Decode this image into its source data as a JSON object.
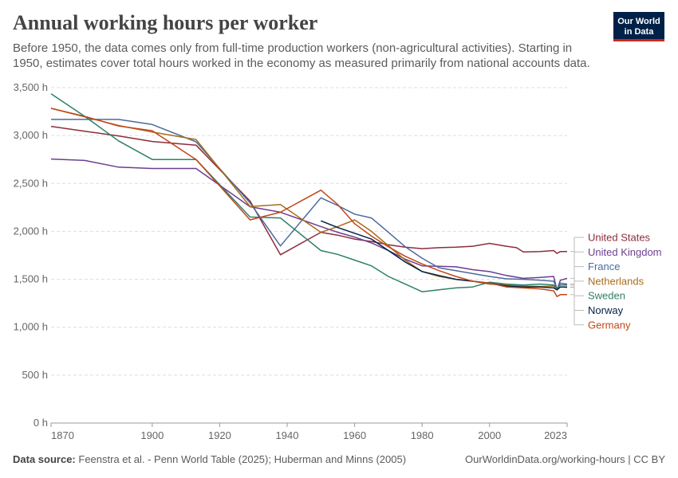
{
  "header": {
    "title": "Annual working hours per worker",
    "subtitle": "Before 1950, the data comes only from full-time production workers (non-agricultural activities). Starting in 1950, estimates cover total hours worked in the economy as measured primarily from national accounts data.",
    "logo_line1": "Our World",
    "logo_line2": "in Data"
  },
  "footer": {
    "source_label": "Data source:",
    "source_text": "Feenstra et al. - Penn World Table (2025); Huberman and Minns (2005)",
    "url_text": "OurWorldinData.org/working-hours | CC BY"
  },
  "chart_data": {
    "type": "line",
    "xlim": [
      1870,
      2023
    ],
    "ylim": [
      0,
      3500
    ],
    "x_ticks": [
      1870,
      1900,
      1920,
      1940,
      1960,
      1980,
      2000,
      2023
    ],
    "y_ticks": [
      0,
      500,
      1000,
      1500,
      2000,
      2500,
      3000,
      3500
    ],
    "y_tick_labels": [
      "0 h",
      "500 h",
      "1,000 h",
      "1,500 h",
      "2,000 h",
      "2,500 h",
      "3,000 h",
      "3,500 h"
    ],
    "grid": true,
    "legend_placement": "right",
    "series": [
      {
        "name": "United States",
        "color": "#8c2d3c",
        "x": [
          1870,
          1880,
          1890,
          1900,
          1913,
          1929,
          1938,
          1950,
          1955,
          1960,
          1965,
          1970,
          1975,
          1980,
          1985,
          1990,
          1995,
          2000,
          2005,
          2008,
          2010,
          2015,
          2019,
          2020,
          2021,
          2023
        ],
        "y": [
          3096,
          3045,
          2996,
          2938,
          2900,
          2316,
          1756,
          1990,
          1960,
          1920,
          1895,
          1860,
          1835,
          1820,
          1830,
          1835,
          1845,
          1875,
          1845,
          1830,
          1785,
          1790,
          1800,
          1770,
          1790,
          1790
        ]
      },
      {
        "name": "United Kingdom",
        "color": "#6d3e91",
        "x": [
          1870,
          1880,
          1890,
          1900,
          1913,
          1929,
          1938,
          1950,
          1955,
          1960,
          1965,
          1970,
          1975,
          1980,
          1985,
          1990,
          1995,
          2000,
          2005,
          2010,
          2015,
          2019,
          2020,
          2021,
          2023
        ],
        "y": [
          2755,
          2740,
          2670,
          2656,
          2656,
          2257,
          2200,
          2050,
          1990,
          1940,
          1880,
          1800,
          1710,
          1640,
          1635,
          1630,
          1600,
          1580,
          1540,
          1510,
          1520,
          1530,
          1390,
          1490,
          1510
        ]
      },
      {
        "name": "France",
        "color": "#4c6a9c",
        "x": [
          1870,
          1890,
          1900,
          1913,
          1929,
          1938,
          1950,
          1955,
          1960,
          1965,
          1970,
          1975,
          1980,
          1985,
          1990,
          1995,
          2000,
          2005,
          2010,
          2015,
          2019,
          2020,
          2021,
          2023
        ],
        "y": [
          3168,
          3168,
          3115,
          2935,
          2297,
          1848,
          2350,
          2270,
          2180,
          2140,
          1990,
          1840,
          1720,
          1620,
          1590,
          1560,
          1530,
          1505,
          1500,
          1490,
          1480,
          1400,
          1460,
          1450
        ]
      },
      {
        "name": "Netherlands",
        "color": "#a86d1b",
        "x": [
          1870,
          1890,
          1900,
          1913,
          1929,
          1938,
          1950,
          1955,
          1960,
          1965,
          1970,
          1975,
          1980,
          1985,
          1990,
          1995,
          2000,
          2005,
          2010,
          2015,
          2019,
          2020,
          2021,
          2023
        ],
        "y": [
          3285,
          3105,
          3036,
          2959,
          2260,
          2280,
          1990,
          2050,
          2120,
          2000,
          1850,
          1700,
          1580,
          1530,
          1500,
          1480,
          1450,
          1440,
          1430,
          1425,
          1430,
          1390,
          1420,
          1415
        ]
      },
      {
        "name": "Sweden",
        "color": "#2e8069",
        "x": [
          1870,
          1880,
          1890,
          1900,
          1913,
          1929,
          1938,
          1950,
          1955,
          1960,
          1965,
          1970,
          1975,
          1980,
          1985,
          1990,
          1995,
          2000,
          2005,
          2010,
          2015,
          2019,
          2020,
          2021,
          2023
        ],
        "y": [
          3436,
          3200,
          2945,
          2750,
          2750,
          2150,
          2140,
          1800,
          1760,
          1700,
          1640,
          1530,
          1450,
          1370,
          1390,
          1410,
          1420,
          1470,
          1450,
          1440,
          1450,
          1440,
          1410,
          1440,
          1440
        ]
      },
      {
        "name": "Norway",
        "color": "#002147",
        "x": [
          1950,
          1955,
          1960,
          1965,
          1970,
          1975,
          1980,
          1985,
          1990,
          1995,
          2000,
          2005,
          2010,
          2015,
          2019,
          2020,
          2021,
          2023
        ],
        "y": [
          2110,
          2040,
          1980,
          1920,
          1800,
          1680,
          1580,
          1540,
          1500,
          1480,
          1460,
          1430,
          1420,
          1420,
          1410,
          1390,
          1420,
          1420
        ]
      },
      {
        "name": "Germany",
        "color": "#c0461a",
        "x": [
          1870,
          1880,
          1890,
          1900,
          1913,
          1929,
          1938,
          1950,
          1955,
          1960,
          1965,
          1970,
          1975,
          1980,
          1985,
          1990,
          1995,
          2000,
          2005,
          2010,
          2015,
          2019,
          2020,
          2021,
          2023
        ],
        "y": [
          3284,
          3200,
          3100,
          3050,
          2750,
          2120,
          2200,
          2430,
          2280,
          2080,
          1950,
          1840,
          1740,
          1660,
          1590,
          1530,
          1480,
          1460,
          1420,
          1410,
          1400,
          1380,
          1320,
          1340,
          1340
        ]
      }
    ]
  }
}
